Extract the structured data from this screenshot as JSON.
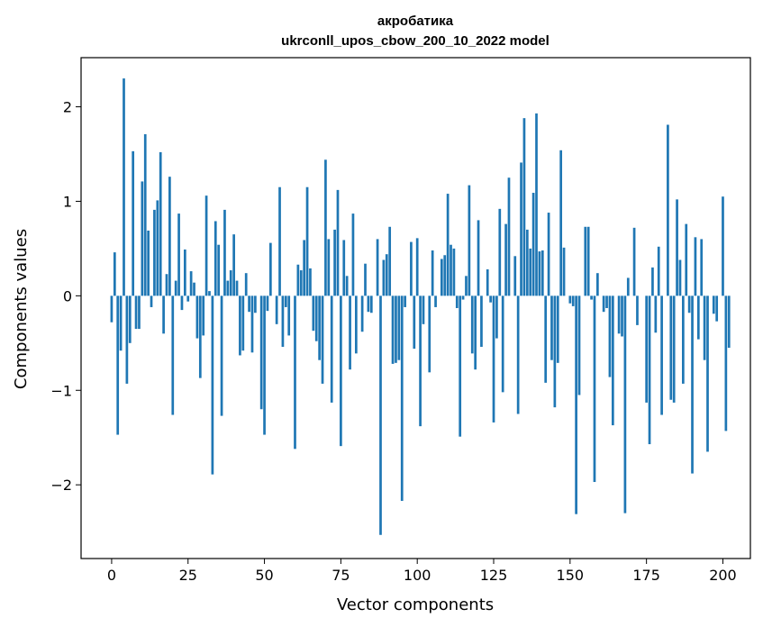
{
  "chart_data": {
    "type": "bar",
    "title": "акробатика",
    "subtitle": "ukrconll_upos_cbow_200_10_2022 model",
    "xlabel": "Vector components",
    "ylabel": "Components values",
    "xlim": [
      -10,
      209
    ],
    "ylim": [
      -2.78,
      2.52
    ],
    "xticks": [
      0,
      25,
      50,
      75,
      100,
      125,
      150,
      175,
      200
    ],
    "xtick_labels": [
      "0",
      "25",
      "50",
      "75",
      "100",
      "125",
      "150",
      "175",
      "200"
    ],
    "yticks": [
      -2,
      -1,
      0,
      1,
      2
    ],
    "ytick_labels": [
      "−2",
      "−1",
      "0",
      "1",
      "2"
    ],
    "grid": false,
    "bar_color": "#1f77b4",
    "series": [
      {
        "values": [
          -0.28,
          0.46,
          -1.47,
          -0.58,
          2.3,
          -0.93,
          -0.5,
          1.53,
          -0.35,
          -0.35,
          1.21,
          1.71,
          0.69,
          -0.12,
          0.91,
          1.01,
          1.52,
          -0.4,
          0.23,
          1.26,
          -1.26,
          0.16,
          0.87,
          -0.15,
          0.49,
          -0.06,
          0.26,
          0.14,
          -0.45,
          -0.87,
          -0.42,
          1.06,
          0.05,
          -1.89,
          0.79,
          0.54,
          -1.27,
          0.91,
          0.16,
          0.27,
          0.65,
          0.16,
          -0.63,
          -0.58,
          0.24,
          -0.17,
          -0.6,
          -0.18,
          0.0,
          -1.2,
          -1.47,
          -0.16,
          0.56,
          0.0,
          -0.3,
          1.15,
          -0.54,
          -0.12,
          -0.42,
          0.0,
          -1.62,
          0.33,
          0.27,
          0.59,
          1.15,
          0.29,
          -0.37,
          -0.48,
          -0.68,
          -0.93,
          1.44,
          0.6,
          -1.13,
          0.7,
          1.12,
          -1.59,
          0.59,
          0.21,
          -0.78,
          0.87,
          -0.61,
          0.0,
          -0.38,
          0.34,
          -0.17,
          -0.18,
          0.0,
          0.6,
          -2.53,
          0.38,
          0.44,
          0.73,
          -0.72,
          -0.71,
          -0.68,
          -2.17,
          -0.12,
          0.0,
          0.57,
          -0.56,
          0.61,
          -1.38,
          -0.3,
          0.0,
          -0.81,
          0.48,
          -0.12,
          0.0,
          0.39,
          0.43,
          1.08,
          0.54,
          0.5,
          -0.13,
          -1.49,
          -0.04,
          0.21,
          1.17,
          -0.61,
          -0.78,
          0.8,
          -0.54,
          0.0,
          0.28,
          -0.07,
          -1.34,
          -0.45,
          0.92,
          -1.02,
          0.76,
          1.25,
          0.0,
          0.42,
          -1.25,
          1.41,
          1.88,
          0.7,
          0.5,
          1.09,
          1.93,
          0.47,
          0.48,
          -0.92,
          0.88,
          -0.68,
          -1.18,
          -0.71,
          1.54,
          0.51,
          0.0,
          -0.08,
          -0.11,
          -2.31,
          -1.05,
          0.0,
          0.73,
          0.73,
          -0.04,
          -1.97,
          0.24,
          0.0,
          -0.17,
          -0.13,
          -0.86,
          -1.37,
          0.0,
          -0.4,
          -0.43,
          -2.3,
          0.19,
          0.0,
          0.72,
          -0.31,
          0.0,
          0.0,
          -1.13,
          -1.57,
          0.3,
          -0.39,
          0.52,
          -1.26,
          0.0,
          1.81,
          -1.1,
          -1.13,
          1.02,
          0.38,
          -0.93,
          0.76,
          -0.18,
          -1.88,
          0.62,
          -0.46,
          0.6,
          -0.68,
          -1.65,
          0.0,
          -0.19,
          -0.27,
          0.0,
          1.05,
          -1.43,
          -0.55
        ]
      }
    ]
  }
}
